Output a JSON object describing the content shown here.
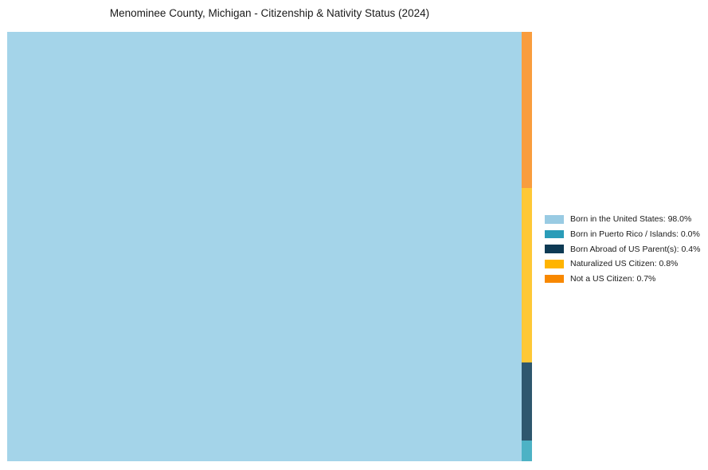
{
  "title": "Menominee County, Michigan - Citizenship & Nativity Status (2024)",
  "chart_data": {
    "type": "treemap",
    "title": "Menominee County, Michigan - Citizenship & Nativity Status (2024)",
    "unit": "%",
    "legend_position": "right",
    "grid": false,
    "categories": [
      "Born in the United States",
      "Born in Puerto Rico / Islands",
      "Born Abroad of US Parent(s)",
      "Naturalized US Citizen",
      "Not a US Citizen"
    ],
    "values": [
      98.0,
      0.0,
      0.4,
      0.8,
      0.7
    ],
    "layout_note": "Largest category fills left block; remaining categories stacked top-to-bottom in thin right column: Not a US Citizen, Naturalized US Citizen, Born Abroad of US Parent(s), Born in Puerto Rico / Islands"
  },
  "segments": {
    "born_us": {
      "label": "Born in the United States",
      "value_pct": 98.0,
      "color": "#a4d4e9"
    },
    "puerto_rico": {
      "label": "Born in Puerto Rico / Islands",
      "value_pct": 0.0,
      "color": "#4db2c5"
    },
    "born_abroad": {
      "label": "Born Abroad of US Parent(s)",
      "value_pct": 0.4,
      "color": "#2e576e"
    },
    "naturalized": {
      "label": "Naturalized US Citizen",
      "value_pct": 0.8,
      "color": "#fec836"
    },
    "not_citizen": {
      "label": "Not a US Citizen",
      "value_pct": 0.7,
      "color": "#f99d3e"
    }
  },
  "legend": {
    "items": [
      {
        "label": "Born in the United States: 98.0%",
        "color": "#99cbe3"
      },
      {
        "label": "Born in Puerto Rico / Islands: 0.0%",
        "color": "#2a9cb8"
      },
      {
        "label": "Born Abroad of US Parent(s): 0.4%",
        "color": "#0e3a54"
      },
      {
        "label": "Naturalized US Citizen: 0.8%",
        "color": "#ffb400"
      },
      {
        "label": "Not a US Citizen: 0.7%",
        "color": "#f88800"
      }
    ]
  }
}
